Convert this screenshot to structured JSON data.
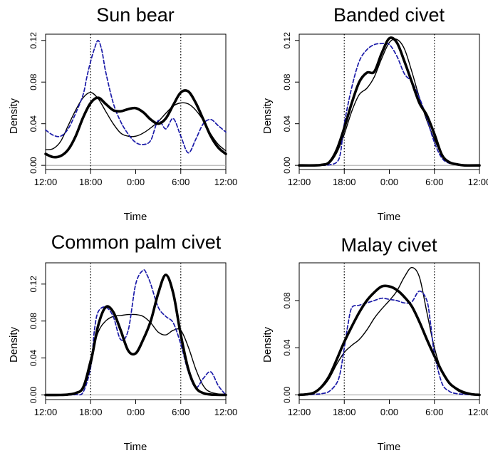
{
  "figure": {
    "x_tick_labels": [
      "12:00",
      "18:00",
      "0:00",
      "6:00",
      "12:00"
    ],
    "colors": {
      "thick": "#000000",
      "thin": "#000000",
      "dashed": "#1a1aa8",
      "baseline": "#9a9a9a",
      "marker": "#000000"
    }
  },
  "chart_data": [
    {
      "type": "line",
      "title": "Sun bear",
      "xlabel": "Time",
      "ylabel": "Density",
      "xlim": [
        12,
        36
      ],
      "ylim": [
        -0.004,
        0.126
      ],
      "y_ticks": [
        0.0,
        0.04,
        0.08,
        0.12
      ],
      "y_tick_labels": [
        "0.00",
        "0.04",
        "0.08",
        "0.12"
      ],
      "x_ticks": [
        12,
        18,
        24,
        30,
        36
      ],
      "markers": [
        18,
        30
      ],
      "series": [
        {
          "name": "thick",
          "x": [
            12,
            13,
            14,
            15,
            16,
            17,
            18,
            19,
            20,
            21,
            22,
            23,
            24,
            25,
            26,
            27,
            28,
            29,
            30,
            31,
            32,
            33,
            34,
            35,
            36
          ],
          "y": [
            0.011,
            0.008,
            0.009,
            0.015,
            0.028,
            0.046,
            0.06,
            0.065,
            0.059,
            0.053,
            0.052,
            0.054,
            0.055,
            0.051,
            0.044,
            0.04,
            0.045,
            0.058,
            0.07,
            0.071,
            0.06,
            0.044,
            0.028,
            0.017,
            0.011
          ]
        },
        {
          "name": "thin",
          "x": [
            12,
            13,
            14,
            15,
            16,
            17,
            18,
            19,
            20,
            21,
            22,
            23,
            24,
            25,
            26,
            27,
            28,
            29,
            30,
            31,
            32,
            33,
            34,
            35,
            36
          ],
          "y": [
            0.015,
            0.016,
            0.023,
            0.038,
            0.053,
            0.065,
            0.07,
            0.064,
            0.052,
            0.04,
            0.031,
            0.028,
            0.028,
            0.031,
            0.036,
            0.042,
            0.05,
            0.057,
            0.06,
            0.059,
            0.053,
            0.043,
            0.03,
            0.02,
            0.014
          ]
        },
        {
          "name": "dashed",
          "x": [
            12,
            13,
            14,
            15,
            16,
            17,
            17.5,
            18,
            18.5,
            19,
            19.5,
            20,
            21,
            22,
            23,
            24,
            25,
            26,
            27,
            28,
            29,
            30,
            31,
            32,
            33,
            34,
            35,
            36
          ],
          "y": [
            0.034,
            0.029,
            0.028,
            0.035,
            0.05,
            0.068,
            0.085,
            0.1,
            0.112,
            0.12,
            0.11,
            0.09,
            0.06,
            0.042,
            0.03,
            0.022,
            0.02,
            0.024,
            0.043,
            0.035,
            0.045,
            0.028,
            0.012,
            0.025,
            0.04,
            0.044,
            0.038,
            0.032
          ]
        }
      ]
    },
    {
      "type": "line",
      "title": "Banded civet",
      "xlabel": "Time",
      "ylabel": "Density",
      "xlim": [
        12,
        36
      ],
      "ylim": [
        -0.004,
        0.126
      ],
      "y_ticks": [
        0.0,
        0.04,
        0.08,
        0.12
      ],
      "y_tick_labels": [
        "0.00",
        "0.04",
        "0.08",
        "0.12"
      ],
      "x_ticks": [
        12,
        18,
        24,
        30,
        36
      ],
      "markers": [
        18,
        30
      ],
      "series": [
        {
          "name": "thick",
          "x": [
            12,
            14,
            15,
            16,
            17,
            18,
            19,
            20,
            21,
            22,
            23,
            24,
            25,
            26,
            27,
            28,
            29,
            30,
            31,
            32,
            33,
            34,
            36
          ],
          "y": [
            0,
            0,
            0.0005,
            0.003,
            0.015,
            0.036,
            0.06,
            0.08,
            0.089,
            0.09,
            0.108,
            0.122,
            0.118,
            0.1,
            0.08,
            0.06,
            0.048,
            0.03,
            0.01,
            0.003,
            0.001,
            0,
            0
          ]
        },
        {
          "name": "thin",
          "x": [
            12,
            14,
            15,
            16,
            17,
            18,
            19,
            20,
            21,
            22,
            23,
            24,
            25,
            26,
            27,
            28,
            29,
            30,
            31,
            32,
            33,
            34,
            36
          ],
          "y": [
            0,
            0,
            0.0005,
            0.002,
            0.012,
            0.03,
            0.052,
            0.068,
            0.074,
            0.085,
            0.103,
            0.118,
            0.121,
            0.112,
            0.09,
            0.065,
            0.043,
            0.025,
            0.01,
            0.003,
            0.001,
            0,
            0
          ]
        },
        {
          "name": "dashed",
          "x": [
            12,
            14,
            15,
            16,
            17,
            17.5,
            18,
            19,
            20,
            21,
            22,
            23,
            24,
            25,
            26,
            27,
            28,
            29,
            30,
            31,
            32,
            33,
            34,
            36
          ],
          "y": [
            0,
            0,
            0,
            0.0005,
            0.003,
            0.012,
            0.04,
            0.075,
            0.1,
            0.111,
            0.116,
            0.117,
            0.116,
            0.105,
            0.088,
            0.08,
            0.065,
            0.045,
            0.022,
            0.007,
            0.002,
            0.001,
            0,
            0
          ]
        }
      ]
    },
    {
      "type": "line",
      "title": "Common palm civet",
      "xlabel": "Time",
      "ylabel": "Density",
      "xlim": [
        12,
        36
      ],
      "ylim": [
        -0.005,
        0.143
      ],
      "y_ticks": [
        0.0,
        0.04,
        0.08,
        0.12
      ],
      "y_tick_labels": [
        "0.00",
        "0.04",
        "0.08",
        "0.12"
      ],
      "x_ticks": [
        12,
        18,
        24,
        30,
        36
      ],
      "markers": [
        18,
        30
      ],
      "series": [
        {
          "name": "thick",
          "x": [
            12,
            14,
            15,
            16,
            17,
            18,
            19,
            20,
            21,
            22,
            23,
            24,
            25,
            26,
            27,
            28,
            29,
            30,
            31,
            32,
            33,
            34,
            36
          ],
          "y": [
            0,
            0,
            0.0005,
            0.002,
            0.008,
            0.035,
            0.075,
            0.095,
            0.09,
            0.07,
            0.048,
            0.045,
            0.06,
            0.08,
            0.11,
            0.13,
            0.11,
            0.065,
            0.028,
            0.008,
            0.002,
            0.0005,
            0
          ]
        },
        {
          "name": "thin",
          "x": [
            12,
            14,
            15,
            16,
            17,
            18,
            19,
            20,
            21,
            22,
            23,
            24,
            25,
            26,
            27,
            28,
            29,
            30,
            31,
            32,
            33,
            34,
            36
          ],
          "y": [
            0,
            0,
            0.0005,
            0.002,
            0.01,
            0.04,
            0.068,
            0.08,
            0.085,
            0.086,
            0.087,
            0.087,
            0.085,
            0.078,
            0.068,
            0.065,
            0.07,
            0.07,
            0.052,
            0.028,
            0.01,
            0.003,
            0
          ]
        },
        {
          "name": "dashed",
          "x": [
            12,
            15,
            16,
            17,
            18,
            18.5,
            19,
            20,
            21,
            22,
            23,
            24,
            25,
            25.5,
            26,
            27,
            28,
            29,
            30,
            31,
            32,
            33,
            34,
            35,
            36
          ],
          "y": [
            0,
            0,
            0.0005,
            0.003,
            0.03,
            0.07,
            0.09,
            0.095,
            0.085,
            0.06,
            0.07,
            0.12,
            0.135,
            0.13,
            0.12,
            0.095,
            0.085,
            0.078,
            0.055,
            0.025,
            0.008,
            0.018,
            0.025,
            0.01,
            0
          ]
        }
      ]
    },
    {
      "type": "line",
      "title": "Malay civet",
      "xlabel": "Time",
      "ylabel": "Density",
      "xlim": [
        12,
        36
      ],
      "ylim": [
        -0.004,
        0.112
      ],
      "y_ticks": [
        0.0,
        0.04,
        0.08
      ],
      "y_tick_labels": [
        "0.00",
        "0.04",
        "0.08"
      ],
      "x_ticks": [
        12,
        18,
        24,
        30,
        36
      ],
      "markers": [
        18,
        30
      ],
      "series": [
        {
          "name": "thick",
          "x": [
            12,
            13,
            14,
            15,
            16,
            17,
            18,
            19,
            20,
            21,
            22,
            23,
            24,
            25,
            26,
            27,
            28,
            29,
            30,
            31,
            32,
            33,
            34,
            35,
            36
          ],
          "y": [
            0,
            0.0005,
            0.002,
            0.007,
            0.016,
            0.03,
            0.045,
            0.058,
            0.07,
            0.08,
            0.087,
            0.092,
            0.092,
            0.089,
            0.083,
            0.075,
            0.062,
            0.047,
            0.033,
            0.02,
            0.01,
            0.005,
            0.002,
            0.0005,
            0
          ]
        },
        {
          "name": "thin",
          "x": [
            12,
            13,
            14,
            15,
            16,
            17,
            18,
            19,
            20,
            21,
            22,
            23,
            24,
            25,
            26,
            27,
            28,
            29,
            30,
            31,
            32,
            33,
            34,
            35,
            36
          ],
          "y": [
            0,
            0.0005,
            0.002,
            0.006,
            0.014,
            0.026,
            0.036,
            0.042,
            0.047,
            0.055,
            0.065,
            0.073,
            0.08,
            0.088,
            0.1,
            0.108,
            0.1,
            0.07,
            0.04,
            0.02,
            0.01,
            0.004,
            0.001,
            0.0003,
            0
          ]
        },
        {
          "name": "dashed",
          "x": [
            12,
            13,
            14,
            15,
            16,
            17,
            17.5,
            18,
            18.5,
            19,
            20,
            21,
            22,
            23,
            24,
            25,
            26,
            27,
            28,
            29,
            29.5,
            30,
            31,
            32,
            33,
            34,
            35,
            36
          ],
          "y": [
            0,
            0,
            0.0005,
            0.001,
            0.003,
            0.01,
            0.02,
            0.04,
            0.06,
            0.074,
            0.076,
            0.078,
            0.08,
            0.082,
            0.081,
            0.08,
            0.078,
            0.079,
            0.088,
            0.08,
            0.06,
            0.035,
            0.01,
            0.003,
            0.001,
            0.0005,
            0,
            0
          ]
        }
      ]
    }
  ]
}
